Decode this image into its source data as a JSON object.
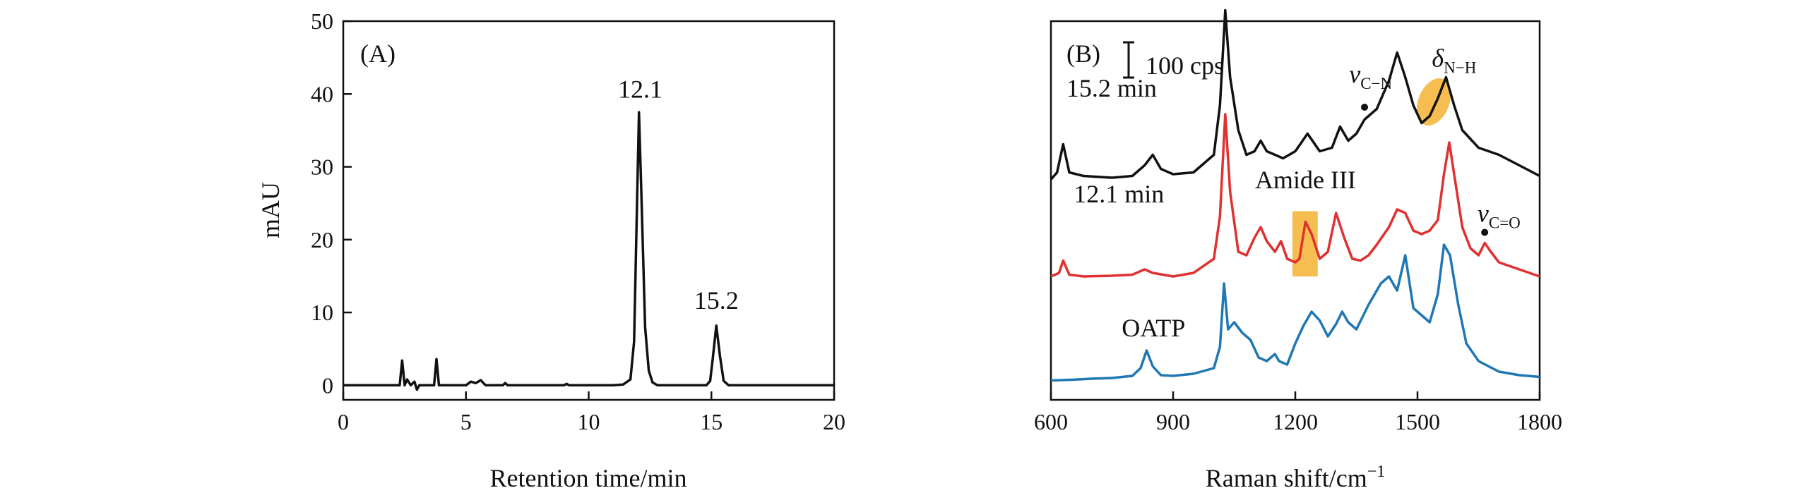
{
  "chart_data": [
    {
      "panel": "(A)",
      "type": "line",
      "xlabel": "Retention time/min",
      "ylabel": "mAU",
      "xlim": [
        0,
        20
      ],
      "ylim": [
        -2,
        50
      ],
      "xticks": [
        "0",
        "5",
        "10",
        "15",
        "20"
      ],
      "yticks": [
        "0",
        "10",
        "20",
        "30",
        "40",
        "50"
      ],
      "grid": false,
      "series": [
        {
          "color": "#111111",
          "points": [
            [
              0,
              0
            ],
            [
              2.3,
              0
            ],
            [
              2.4,
              3.4
            ],
            [
              2.5,
              0
            ],
            [
              2.6,
              0.8
            ],
            [
              2.75,
              0
            ],
            [
              2.9,
              0.5
            ],
            [
              3.0,
              -0.6
            ],
            [
              3.1,
              0
            ],
            [
              3.7,
              0
            ],
            [
              3.8,
              3.6
            ],
            [
              3.9,
              0
            ],
            [
              5.0,
              0
            ],
            [
              5.2,
              0.5
            ],
            [
              5.4,
              0.3
            ],
            [
              5.6,
              0.7
            ],
            [
              5.8,
              0
            ],
            [
              6.5,
              0
            ],
            [
              6.6,
              0.3
            ],
            [
              6.7,
              0
            ],
            [
              9.0,
              0
            ],
            [
              9.1,
              0.2
            ],
            [
              9.2,
              0
            ],
            [
              11.0,
              0
            ],
            [
              11.4,
              0.1
            ],
            [
              11.7,
              0.8
            ],
            [
              11.85,
              6
            ],
            [
              11.95,
              22
            ],
            [
              12.05,
              37.5
            ],
            [
              12.15,
              26
            ],
            [
              12.3,
              8
            ],
            [
              12.45,
              2
            ],
            [
              12.6,
              0.4
            ],
            [
              12.8,
              0
            ],
            [
              14.8,
              0
            ],
            [
              14.95,
              0.6
            ],
            [
              15.05,
              3.5
            ],
            [
              15.2,
              8.2
            ],
            [
              15.35,
              4
            ],
            [
              15.5,
              0.6
            ],
            [
              15.7,
              0
            ],
            [
              20,
              0
            ]
          ]
        }
      ],
      "annotations": [
        {
          "text": "12.1",
          "x": 12.1,
          "y": 39.5
        },
        {
          "text": "15.2",
          "x": 15.2,
          "y": 10.5
        }
      ]
    },
    {
      "panel": "(B)",
      "type": "line",
      "xlabel": "Raman shift/cm",
      "xlabel_sup": "−1",
      "ylabel": "",
      "xlim": [
        600,
        1800
      ],
      "xticks": [
        "600",
        "900",
        "1200",
        "1500",
        "1800"
      ],
      "grid": false,
      "scale_bar": {
        "label": "100 cps",
        "value": 100
      },
      "series": [
        {
          "name": "OATP",
          "color": "#1f77b4",
          "offset": 20,
          "points": [
            [
              600,
              5
            ],
            [
              650,
              7
            ],
            [
              700,
              10
            ],
            [
              750,
              12
            ],
            [
              800,
              18
            ],
            [
              820,
              40
            ],
            [
              835,
              90
            ],
            [
              850,
              45
            ],
            [
              870,
              20
            ],
            [
              900,
              18
            ],
            [
              950,
              24
            ],
            [
              1000,
              40
            ],
            [
              1015,
              100
            ],
            [
              1025,
              280
            ],
            [
              1035,
              150
            ],
            [
              1050,
              170
            ],
            [
              1070,
              140
            ],
            [
              1090,
              120
            ],
            [
              1110,
              70
            ],
            [
              1130,
              60
            ],
            [
              1150,
              80
            ],
            [
              1160,
              60
            ],
            [
              1180,
              50
            ],
            [
              1200,
              110
            ],
            [
              1220,
              160
            ],
            [
              1240,
              200
            ],
            [
              1260,
              175
            ],
            [
              1280,
              130
            ],
            [
              1300,
              165
            ],
            [
              1315,
              200
            ],
            [
              1330,
              170
            ],
            [
              1350,
              150
            ],
            [
              1380,
              220
            ],
            [
              1410,
              280
            ],
            [
              1430,
              300
            ],
            [
              1450,
              260
            ],
            [
              1470,
              360
            ],
            [
              1490,
              210
            ],
            [
              1510,
              190
            ],
            [
              1530,
              170
            ],
            [
              1550,
              250
            ],
            [
              1565,
              390
            ],
            [
              1580,
              360
            ],
            [
              1600,
              220
            ],
            [
              1620,
              110
            ],
            [
              1650,
              60
            ],
            [
              1700,
              30
            ],
            [
              1750,
              20
            ],
            [
              1800,
              15
            ]
          ]
        },
        {
          "name": "12.1 min",
          "color": "#e03030",
          "offset": 310,
          "points": [
            [
              600,
              10
            ],
            [
              620,
              20
            ],
            [
              630,
              55
            ],
            [
              645,
              15
            ],
            [
              680,
              10
            ],
            [
              750,
              12
            ],
            [
              800,
              15
            ],
            [
              830,
              30
            ],
            [
              850,
              20
            ],
            [
              900,
              10
            ],
            [
              950,
              20
            ],
            [
              1000,
              60
            ],
            [
              1015,
              180
            ],
            [
              1028,
              470
            ],
            [
              1040,
              250
            ],
            [
              1060,
              80
            ],
            [
              1080,
              70
            ],
            [
              1100,
              120
            ],
            [
              1115,
              150
            ],
            [
              1130,
              110
            ],
            [
              1150,
              80
            ],
            [
              1165,
              110
            ],
            [
              1180,
              60
            ],
            [
              1200,
              50
            ],
            [
              1210,
              60
            ],
            [
              1225,
              165
            ],
            [
              1240,
              130
            ],
            [
              1260,
              60
            ],
            [
              1280,
              80
            ],
            [
              1300,
              190
            ],
            [
              1320,
              120
            ],
            [
              1340,
              60
            ],
            [
              1360,
              55
            ],
            [
              1380,
              70
            ],
            [
              1400,
              100
            ],
            [
              1430,
              150
            ],
            [
              1450,
              200
            ],
            [
              1470,
              190
            ],
            [
              1490,
              140
            ],
            [
              1510,
              130
            ],
            [
              1530,
              140
            ],
            [
              1550,
              170
            ],
            [
              1565,
              300
            ],
            [
              1578,
              390
            ],
            [
              1590,
              300
            ],
            [
              1610,
              150
            ],
            [
              1630,
              90
            ],
            [
              1650,
              70
            ],
            [
              1665,
              105
            ],
            [
              1680,
              80
            ],
            [
              1700,
              50
            ],
            [
              1750,
              30
            ],
            [
              1800,
              10
            ]
          ]
        },
        {
          "name": "15.2 min",
          "color": "#111111",
          "offset": 585,
          "points": [
            [
              600,
              10
            ],
            [
              615,
              30
            ],
            [
              630,
              110
            ],
            [
              645,
              30
            ],
            [
              680,
              20
            ],
            [
              750,
              15
            ],
            [
              800,
              20
            ],
            [
              830,
              50
            ],
            [
              850,
              80
            ],
            [
              870,
              40
            ],
            [
              900,
              25
            ],
            [
              950,
              30
            ],
            [
              1000,
              80
            ],
            [
              1015,
              220
            ],
            [
              1028,
              490
            ],
            [
              1040,
              300
            ],
            [
              1060,
              150
            ],
            [
              1080,
              80
            ],
            [
              1100,
              90
            ],
            [
              1115,
              120
            ],
            [
              1130,
              90
            ],
            [
              1150,
              80
            ],
            [
              1170,
              70
            ],
            [
              1200,
              90
            ],
            [
              1230,
              140
            ],
            [
              1260,
              90
            ],
            [
              1290,
              100
            ],
            [
              1310,
              160
            ],
            [
              1330,
              120
            ],
            [
              1350,
              140
            ],
            [
              1370,
              180
            ],
            [
              1400,
              210
            ],
            [
              1430,
              290
            ],
            [
              1450,
              370
            ],
            [
              1470,
              300
            ],
            [
              1490,
              220
            ],
            [
              1510,
              170
            ],
            [
              1530,
              190
            ],
            [
              1550,
              240
            ],
            [
              1570,
              300
            ],
            [
              1590,
              220
            ],
            [
              1610,
              150
            ],
            [
              1650,
              100
            ],
            [
              1700,
              80
            ],
            [
              1750,
              50
            ],
            [
              1800,
              20
            ]
          ]
        }
      ],
      "annotations": [
        {
          "text": "Amide III",
          "x": 1225,
          "y": 570
        },
        {
          "text": "v",
          "sub": "C−N",
          "x": 1385,
          "y": 870
        },
        {
          "text": "δ",
          "sub": "N−H",
          "x": 1590,
          "y": 915
        },
        {
          "text": "v",
          "sub": "C=O",
          "x": 1700,
          "y": 475
        }
      ],
      "highlights": [
        {
          "shape": "rect",
          "x1": 1193,
          "x2": 1255,
          "y1": 320,
          "y2": 505,
          "color": "#f5b233"
        },
        {
          "shape": "ellipse",
          "cx": 1540,
          "cy": 815,
          "rx": 22,
          "ry": 70,
          "color": "#f5b233"
        }
      ],
      "markers": [
        {
          "x": 1370,
          "y": 800
        },
        {
          "x": 1665,
          "y": 445
        }
      ]
    }
  ]
}
